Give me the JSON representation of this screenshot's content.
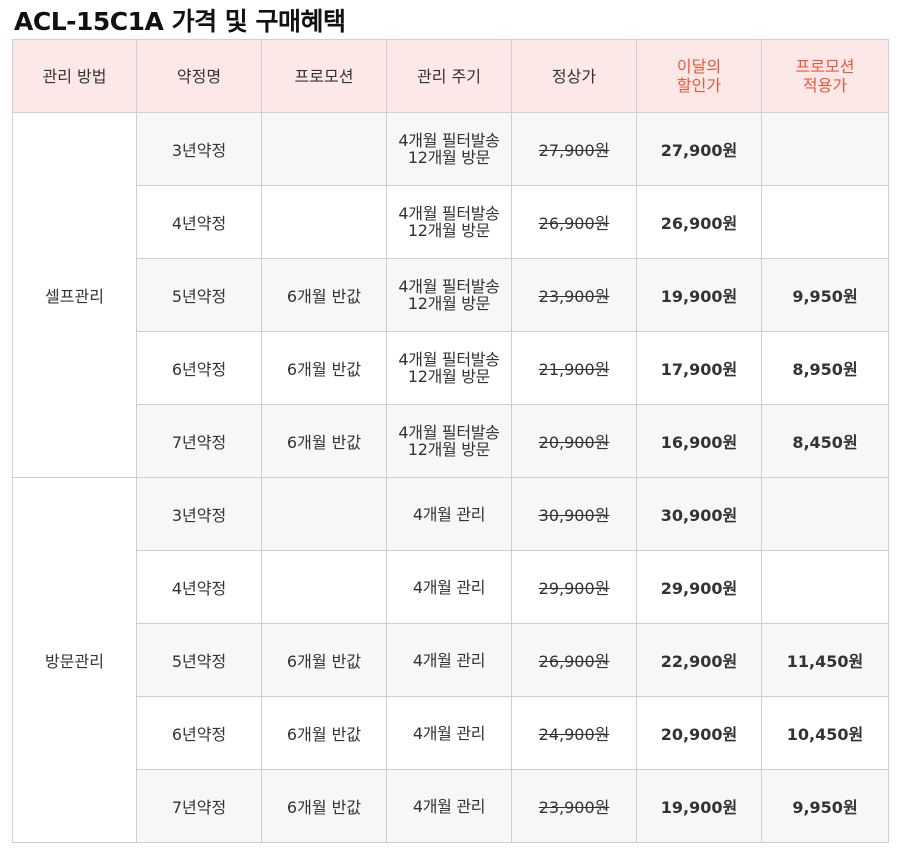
{
  "title": "ACL-15C1A 가격 및 구매혜택",
  "headers": {
    "method": "관리 방법",
    "contract": "약정명",
    "promotion": "프로모션",
    "cycle": "관리 주기",
    "regular": "정상가",
    "discount_line1": "이달의",
    "discount_line2": "할인가",
    "promo_line1": "프로모션",
    "promo_line2": "적용가"
  },
  "groups": [
    {
      "method": "셀프관리",
      "rows": [
        {
          "contract": "3년약정",
          "promotion": "",
          "cycle_line1": "4개월 필터발송",
          "cycle_line2": "12개월 방문",
          "regular": "27,900원",
          "discount": "27,900원",
          "promo": ""
        },
        {
          "contract": "4년약정",
          "promotion": "",
          "cycle_line1": "4개월 필터발송",
          "cycle_line2": "12개월 방문",
          "regular": "26,900원",
          "discount": "26,900원",
          "promo": ""
        },
        {
          "contract": "5년약정",
          "promotion": "6개월 반값",
          "cycle_line1": "4개월 필터발송",
          "cycle_line2": "12개월 방문",
          "regular": "23,900원",
          "discount": "19,900원",
          "promo": "9,950원"
        },
        {
          "contract": "6년약정",
          "promotion": "6개월 반값",
          "cycle_line1": "4개월 필터발송",
          "cycle_line2": "12개월 방문",
          "regular": "21,900원",
          "discount": "17,900원",
          "promo": "8,950원"
        },
        {
          "contract": "7년약정",
          "promotion": "6개월 반값",
          "cycle_line1": "4개월 필터발송",
          "cycle_line2": "12개월 방문",
          "regular": "20,900원",
          "discount": "16,900원",
          "promo": "8,450원"
        }
      ]
    },
    {
      "method": "방문관리",
      "rows": [
        {
          "contract": "3년약정",
          "promotion": "",
          "cycle_line1": "4개월 관리",
          "cycle_line2": "",
          "regular": "30,900원",
          "discount": "30,900원",
          "promo": ""
        },
        {
          "contract": "4년약정",
          "promotion": "",
          "cycle_line1": "4개월 관리",
          "cycle_line2": "",
          "regular": "29,900원",
          "discount": "29,900원",
          "promo": ""
        },
        {
          "contract": "5년약정",
          "promotion": "6개월 반값",
          "cycle_line1": "4개월 관리",
          "cycle_line2": "",
          "regular": "26,900원",
          "discount": "22,900원",
          "promo": "11,450원"
        },
        {
          "contract": "6년약정",
          "promotion": "6개월 반값",
          "cycle_line1": "4개월 관리",
          "cycle_line2": "",
          "regular": "24,900원",
          "discount": "20,900원",
          "promo": "10,450원"
        },
        {
          "contract": "7년약정",
          "promotion": "6개월 반값",
          "cycle_line1": "4개월 관리",
          "cycle_line2": "",
          "regular": "23,900원",
          "discount": "19,900원",
          "promo": "9,950원"
        }
      ]
    }
  ]
}
